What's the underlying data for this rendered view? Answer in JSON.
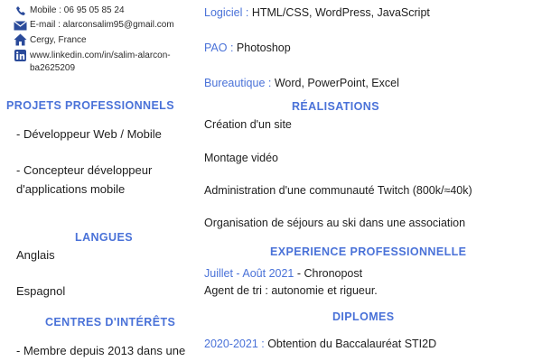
{
  "contact": {
    "mobile": "Mobile : 06 95 05 85 24",
    "email": "E-mail : alarconsalim95@gmail.com",
    "location": "Cergy, France",
    "linkedin_line1": "www.linkedin.com/in/salim-alarcon-",
    "linkedin_line2": "ba2625209"
  },
  "left": {
    "projets_heading": "PROJETS PROFESSIONNELS",
    "projets_item1": "- Développeur Web / Mobile",
    "projets_item2_line1": "- Concepteur développeur",
    "projets_item2_line2": "d'applications mobile",
    "langues_heading": "LANGUES",
    "langue1": "Anglais",
    "langue2": "Espagnol",
    "interets_heading": "CENTRES D'INTÉRÊTS",
    "interet1": "- Membre depuis 2013 dans une"
  },
  "right": {
    "logiciel_label": "Logiciel :",
    "logiciel_value": "HTML/CSS, WordPress, JavaScript",
    "pao_label": "PAO :",
    "pao_value": "Photoshop",
    "bureautique_label": "Bureautique :",
    "bureautique_value": "Word, PowerPoint, Excel",
    "realisations_heading": "RÉALISATIONS",
    "realisation1": "Création d'un site",
    "realisation2": "Montage vidéo",
    "realisation3": "Administration d'une communauté Twitch (800k/≈40k)",
    "realisation4": "Organisation de séjours au ski dans une association",
    "experience_heading": "EXPERIENCE  PROFESSIONNELLE",
    "experience_date": "Juillet - Août 2021",
    "experience_company": " - Chronopost",
    "experience_desc": "Agent de tri : autonomie et rigueur.",
    "diplomes_heading": "DIPLOMES",
    "diplome_date": "2020-2021 :",
    "diplome_value": " Obtention du Baccalauréat STI2D"
  },
  "colors": {
    "accent": "#4a72d8",
    "text": "#1e1e1e"
  },
  "icons": [
    "phone-icon",
    "email-icon",
    "home-icon",
    "linkedin-icon"
  ]
}
